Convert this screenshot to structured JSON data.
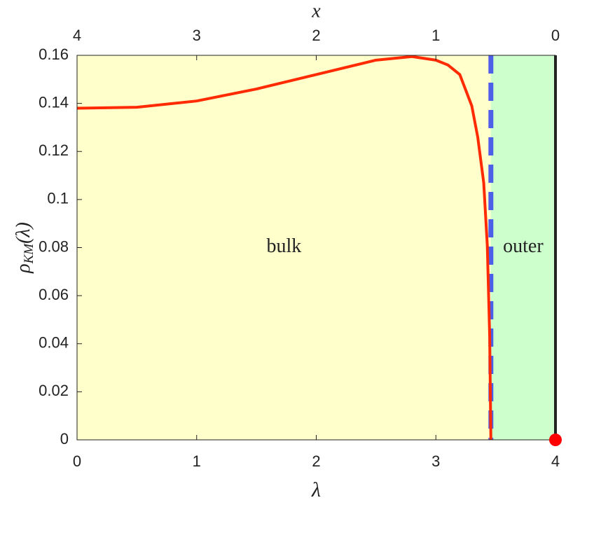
{
  "chart_data": {
    "type": "line",
    "x": [
      0,
      0.5,
      1,
      1.5,
      2,
      2.5,
      2.8,
      3.0,
      3.1,
      3.2,
      3.3,
      3.35,
      3.4,
      3.43,
      3.45,
      3.46
    ],
    "values": [
      0.138,
      0.1384,
      0.141,
      0.146,
      0.152,
      0.158,
      0.1595,
      0.158,
      0.156,
      0.152,
      0.139,
      0.126,
      0.107,
      0.081,
      0.043,
      0
    ],
    "color": "#ff2a00",
    "xlabel": "λ",
    "x2label": "x",
    "ylabel": [
      "ρ",
      "KM",
      "(λ)"
    ],
    "xlim": [
      0,
      4
    ],
    "xticks": [
      0,
      1,
      2,
      3,
      4
    ],
    "x2lim": [
      4,
      0
    ],
    "x2ticks": [
      4,
      3,
      2,
      1,
      0
    ],
    "ylim": [
      0,
      0.16
    ],
    "yticks": [
      0,
      0.02,
      0.04,
      0.06,
      0.08,
      0.1,
      0.12,
      0.14,
      0.16
    ],
    "regions": [
      {
        "label": "bulk",
        "xrange": [
          0,
          3.46
        ],
        "color": "#ffffcc"
      },
      {
        "label": "outer",
        "xrange": [
          3.46,
          4
        ],
        "color": "#ccffcc"
      }
    ],
    "boundary_line": {
      "x": 3.46,
      "color": "#3344ee"
    },
    "edge_line": {
      "x": 4,
      "color": "#222222"
    },
    "point": {
      "x": 4,
      "y": 0,
      "color": "#ff0000"
    }
  }
}
